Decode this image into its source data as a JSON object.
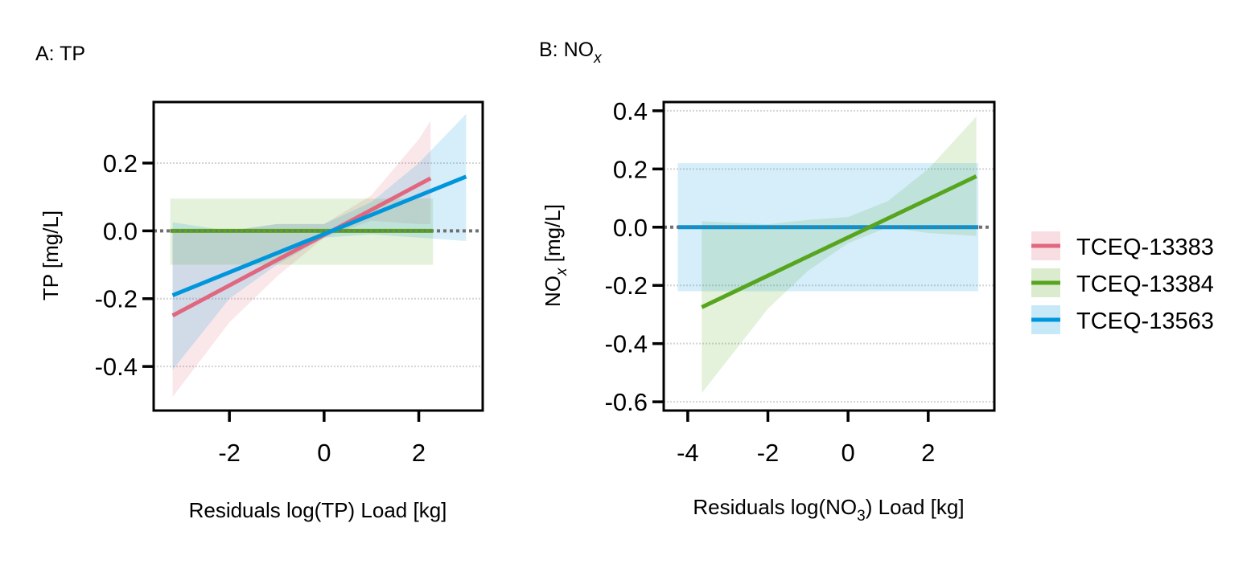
{
  "colors": {
    "TCEQ-13383": "#e0677f",
    "TCEQ-13384": "#57a51f",
    "TCEQ-13563": "#0096dc",
    "zero_line": "#707070"
  },
  "legend": {
    "placement": "right",
    "entries": [
      "TCEQ-13383",
      "TCEQ-13384",
      "TCEQ-13563"
    ]
  },
  "chart_data": [
    {
      "type": "line",
      "panel_title": "A: TP",
      "xlabel": "Residuals log(TP) Load [kg]",
      "ylabel": "TP [mg/L]",
      "xlim": [
        -3.6,
        3.35
      ],
      "ylim": [
        -0.53,
        0.38
      ],
      "xticks": [
        -2,
        0,
        2
      ],
      "xtick_labels": [
        "-2",
        "0",
        "2"
      ],
      "yticks": [
        -0.4,
        -0.2,
        0.0,
        0.2
      ],
      "ytick_labels": [
        "-0.4",
        "-0.2",
        "0.0",
        "0.2"
      ],
      "grid": "horizontal dotted",
      "zero_reference_line": true,
      "series": [
        {
          "name": "TCEQ-13383",
          "x": [
            -3.2,
            2.25
          ],
          "y": [
            -0.25,
            0.155
          ],
          "ci_x": [
            -3.2,
            -2,
            -1,
            0,
            1,
            2,
            2.25
          ],
          "ci_lower": [
            -0.49,
            -0.27,
            -0.135,
            -0.02,
            0.03,
            0.02,
            0.02
          ],
          "ci_upper": [
            0.0,
            0.0,
            0.02,
            0.02,
            0.105,
            0.27,
            0.325
          ]
        },
        {
          "name": "TCEQ-13384",
          "x": [
            -3.25,
            2.3
          ],
          "y": [
            0.0,
            0.0
          ],
          "ci_x": [
            -3.25,
            2.3
          ],
          "ci_lower": [
            -0.1,
            -0.1
          ],
          "ci_upper": [
            0.095,
            0.095
          ]
        },
        {
          "name": "TCEQ-13563",
          "x": [
            -3.2,
            3.0
          ],
          "y": [
            -0.19,
            0.16
          ],
          "ci_x": [
            -3.2,
            -2,
            -1,
            0,
            1,
            2,
            3.0
          ],
          "ci_lower": [
            -0.41,
            -0.2,
            -0.1,
            -0.02,
            -0.01,
            -0.02,
            -0.03
          ],
          "ci_upper": [
            0.025,
            0.0,
            0.02,
            0.02,
            0.085,
            0.2,
            0.345
          ]
        }
      ]
    },
    {
      "type": "line",
      "panel_title": "B: NO",
      "panel_title_sub": "x",
      "xlabel": "Residuals log(NO",
      "xlabel_sub": "3",
      "xlabel_end": ") Load [kg]",
      "ylabel": "NO",
      "ylabel_sub": "x",
      "ylabel_end": " [mg/L]",
      "xlim": [
        -4.6,
        3.65
      ],
      "ylim": [
        -0.63,
        0.43
      ],
      "xticks": [
        -4,
        -2,
        0,
        2
      ],
      "xtick_labels": [
        "-4",
        "-2",
        "0",
        "2"
      ],
      "yticks": [
        -0.6,
        -0.4,
        -0.2,
        0.0,
        0.2,
        0.4
      ],
      "ytick_labels": [
        "-0.6",
        "-0.4",
        "-0.2",
        "0.0",
        "0.2",
        "0.4"
      ],
      "grid": "horizontal dotted",
      "zero_reference_line": true,
      "series": [
        {
          "name": "TCEQ-13384",
          "x": [
            -3.65,
            3.2
          ],
          "y": [
            -0.275,
            0.175
          ],
          "ci_x": [
            -3.65,
            -2,
            -1,
            0,
            1,
            2,
            3.2
          ],
          "ci_lower": [
            -0.57,
            -0.28,
            -0.15,
            -0.055,
            0.0,
            -0.02,
            -0.03
          ],
          "ci_upper": [
            0.02,
            0.01,
            0.025,
            0.035,
            0.09,
            0.2,
            0.38
          ]
        },
        {
          "name": "TCEQ-13563",
          "x": [
            -4.25,
            3.25
          ],
          "y": [
            0.0,
            0.0
          ],
          "ci_x": [
            -4.25,
            3.25
          ],
          "ci_lower": [
            -0.22,
            -0.22
          ],
          "ci_upper": [
            0.22,
            0.22
          ]
        }
      ]
    }
  ]
}
